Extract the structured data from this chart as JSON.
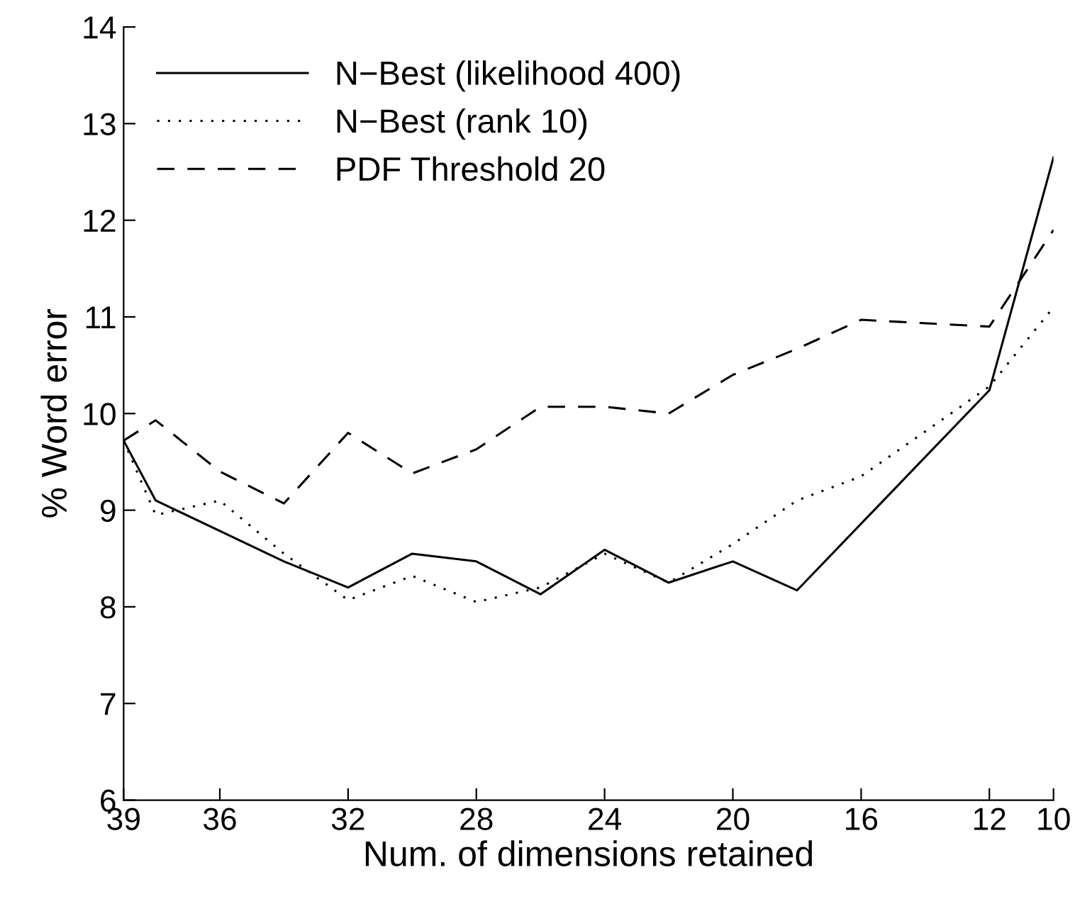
{
  "chart_data": {
    "type": "line",
    "xlabel": "Num. of dimensions retained",
    "ylabel": "% Word error",
    "xlim": [
      39,
      10
    ],
    "ylim": [
      6,
      14
    ],
    "xticks": [
      39,
      36,
      32,
      28,
      24,
      20,
      16,
      12,
      10
    ],
    "yticks": [
      6,
      7,
      8,
      9,
      10,
      11,
      12,
      13,
      14
    ],
    "legend": "top left",
    "grid": false,
    "marker": "none",
    "series": [
      {
        "name": "N−Best (likelihood 400)",
        "color": "#000000",
        "line_style": "solid",
        "x": [
          39,
          38,
          34,
          32,
          30,
          28,
          26,
          24,
          22,
          20,
          18,
          12,
          10
        ],
        "values": [
          9.72,
          9.1,
          8.47,
          8.2,
          8.55,
          8.47,
          8.13,
          8.59,
          8.25,
          8.47,
          8.17,
          10.24,
          12.65
        ]
      },
      {
        "name": "N−Best (rank 10)",
        "color": "#000000",
        "line_style": "dotted",
        "x": [
          39,
          38,
          36,
          34,
          32,
          30,
          28,
          26,
          24,
          22,
          20,
          18,
          16,
          12,
          10
        ],
        "values": [
          9.72,
          8.95,
          9.1,
          8.55,
          8.07,
          8.32,
          8.05,
          8.2,
          8.55,
          8.25,
          8.65,
          9.1,
          9.35,
          10.28,
          11.1
        ]
      },
      {
        "name": "PDF Threshold 20",
        "color": "#000000",
        "line_style": "dashed",
        "x": [
          39,
          38,
          36,
          34,
          32,
          30,
          28,
          26,
          24,
          22,
          20,
          18,
          16,
          12,
          10
        ],
        "values": [
          9.72,
          9.93,
          9.4,
          9.07,
          9.8,
          9.38,
          9.63,
          10.07,
          10.07,
          10.0,
          10.4,
          10.67,
          10.97,
          10.9,
          11.9
        ]
      }
    ]
  }
}
